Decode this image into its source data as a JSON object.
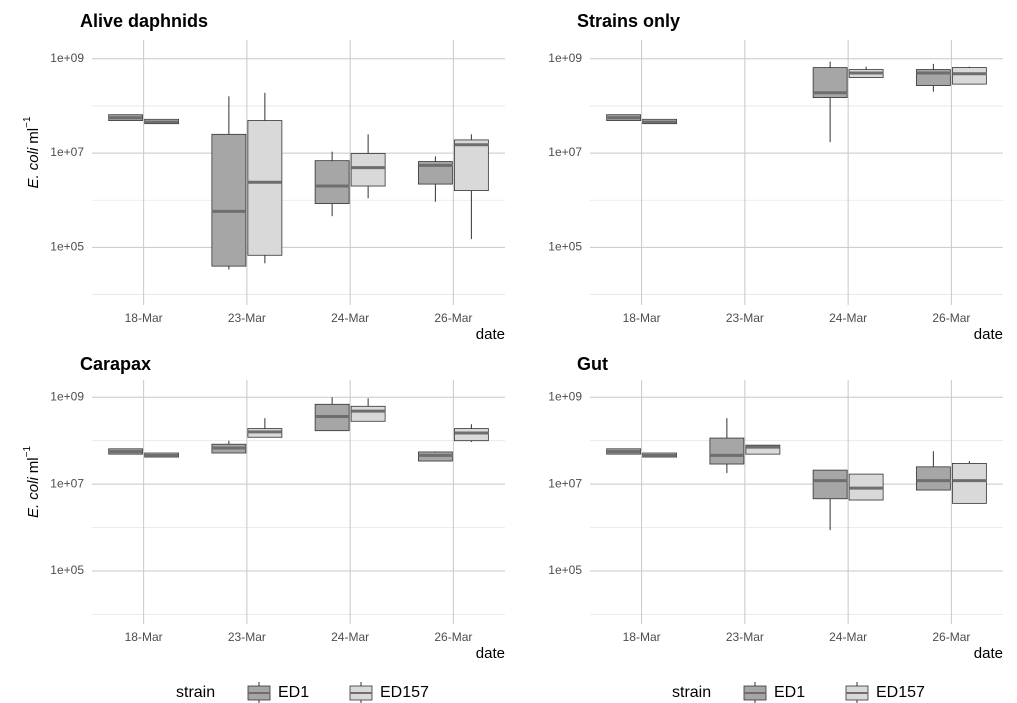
{
  "chart_data": [
    {
      "type": "box",
      "title": "Alive daphnids",
      "ylabel": "E. coli",
      "ylabel_unit": "ml",
      "ylabel_exp": "−1",
      "xlabel": "date",
      "categories": [
        "18-Mar",
        "23-Mar",
        "24-Mar",
        "26-Mar"
      ],
      "log_y": true,
      "grid": true,
      "ylim": [
        6000,
        2500000000
      ],
      "yticks": [
        {
          "value": 100000,
          "label": "1e+05"
        },
        {
          "value": 10000000,
          "label": "1e+07"
        },
        {
          "value": 1000000000,
          "label": "1e+09"
        }
      ],
      "yminor": [
        10000,
        1000000,
        100000000
      ],
      "series": [
        {
          "name": "ED1",
          "color": "#a6a6a6",
          "values": [
            {
              "min": 49000000,
              "q1": 49000000,
              "median": 56000000,
              "q3": 65000000,
              "max": 65000000
            },
            {
              "min": 34000,
              "q1": 40000,
              "median": 580000,
              "q3": 25000000,
              "max": 160000000
            },
            {
              "min": 460000,
              "q1": 850000,
              "median": 2000000,
              "q3": 6900000,
              "max": 10700000
            },
            {
              "min": 930000,
              "q1": 2200000,
              "median": 5500000,
              "q3": 6600000,
              "max": 8500000
            }
          ]
        },
        {
          "name": "ED157",
          "color": "#d9d9d9",
          "values": [
            {
              "min": 42000000,
              "q1": 42000000,
              "median": 46000000,
              "q3": 52000000,
              "max": 52000000
            },
            {
              "min": 46000,
              "q1": 68000,
              "median": 2400000,
              "q3": 49000000,
              "max": 190000000
            },
            {
              "min": 1100000,
              "q1": 2000000,
              "median": 4900000,
              "q3": 9800000,
              "max": 25000000
            },
            {
              "min": 150000,
              "q1": 1600000,
              "median": 15000000,
              "q3": 19000000,
              "max": 25000000
            }
          ]
        }
      ]
    },
    {
      "type": "box",
      "title": "Strains only",
      "xlabel": "date",
      "categories": [
        "18-Mar",
        "23-Mar",
        "24-Mar",
        "26-Mar"
      ],
      "log_y": true,
      "grid": true,
      "ylim": [
        6000,
        2500000000
      ],
      "yticks": [
        {
          "value": 100000,
          "label": "1e+05"
        },
        {
          "value": 10000000,
          "label": "1e+07"
        },
        {
          "value": 1000000000,
          "label": "1e+09"
        }
      ],
      "yminor": [
        10000,
        1000000,
        100000000
      ],
      "series": [
        {
          "name": "ED1",
          "color": "#a6a6a6",
          "values": [
            {
              "min": 49000000,
              "q1": 49000000,
              "median": 56000000,
              "q3": 65000000,
              "max": 65000000
            },
            null,
            {
              "min": 17000000,
              "q1": 150000000,
              "median": 190000000,
              "q3": 650000000,
              "max": 870000000
            },
            {
              "min": 200000000,
              "q1": 270000000,
              "median": 500000000,
              "q3": 590000000,
              "max": 780000000
            }
          ]
        },
        {
          "name": "ED157",
          "color": "#d9d9d9",
          "values": [
            {
              "min": 42000000,
              "q1": 42000000,
              "median": 46000000,
              "q3": 52000000,
              "max": 52000000
            },
            null,
            {
              "min": 400000000,
              "q1": 400000000,
              "median": 500000000,
              "q3": 590000000,
              "max": 680000000
            },
            {
              "min": 290000000,
              "q1": 290000000,
              "median": 480000000,
              "q3": 650000000,
              "max": 680000000
            }
          ]
        }
      ]
    },
    {
      "type": "box",
      "title": "Carapax",
      "ylabel": "E. coli",
      "ylabel_unit": "ml",
      "ylabel_exp": "−1",
      "xlabel": "date",
      "legend_title": "strain",
      "categories": [
        "18-Mar",
        "23-Mar",
        "24-Mar",
        "26-Mar"
      ],
      "log_y": true,
      "grid": true,
      "ylim": [
        6000,
        2500000000
      ],
      "yticks": [
        {
          "value": 100000,
          "label": "1e+05"
        },
        {
          "value": 10000000,
          "label": "1e+07"
        },
        {
          "value": 1000000000,
          "label": "1e+09"
        }
      ],
      "yminor": [
        10000,
        1000000,
        100000000
      ],
      "series": [
        {
          "name": "ED1",
          "color": "#a6a6a6",
          "values": [
            {
              "min": 49000000,
              "q1": 49000000,
              "median": 56000000,
              "q3": 65000000,
              "max": 65000000
            },
            {
              "min": 52000000,
              "q1": 52000000,
              "median": 68000000,
              "q3": 83000000,
              "max": 100000000
            },
            {
              "min": 170000000,
              "q1": 170000000,
              "median": 360000000,
              "q3": 690000000,
              "max": 1000000000
            },
            {
              "min": 34000000,
              "q1": 34000000,
              "median": 46000000,
              "q3": 55000000,
              "max": 57000000
            }
          ]
        },
        {
          "name": "ED157",
          "color": "#d9d9d9",
          "values": [
            {
              "min": 42000000,
              "q1": 42000000,
              "median": 46000000,
              "q3": 52000000,
              "max": 52000000
            },
            {
              "min": 120000000,
              "q1": 120000000,
              "median": 160000000,
              "q3": 190000000,
              "max": 330000000
            },
            {
              "min": 280000000,
              "q1": 280000000,
              "median": 480000000,
              "q3": 620000000,
              "max": 950000000
            },
            {
              "min": 93000000,
              "q1": 100000000,
              "median": 150000000,
              "q3": 190000000,
              "max": 240000000
            }
          ]
        }
      ]
    },
    {
      "type": "box",
      "title": "Gut",
      "xlabel": "date",
      "legend_title": "strain",
      "categories": [
        "18-Mar",
        "23-Mar",
        "24-Mar",
        "26-Mar"
      ],
      "log_y": true,
      "grid": true,
      "ylim": [
        6000,
        2500000000
      ],
      "yticks": [
        {
          "value": 100000,
          "label": "1e+05"
        },
        {
          "value": 10000000,
          "label": "1e+07"
        },
        {
          "value": 1000000000,
          "label": "1e+09"
        }
      ],
      "yminor": [
        10000,
        1000000,
        100000000
      ],
      "series": [
        {
          "name": "ED1",
          "color": "#a6a6a6",
          "values": [
            {
              "min": 49000000,
              "q1": 49000000,
              "median": 56000000,
              "q3": 65000000,
              "max": 65000000
            },
            {
              "min": 18000000,
              "q1": 29000000,
              "median": 46000000,
              "q3": 115000000,
              "max": 330000000
            },
            {
              "min": 870000,
              "q1": 4600000,
              "median": 12000000,
              "q3": 21000000,
              "max": 21000000
            },
            {
              "min": 7300000,
              "q1": 7300000,
              "median": 12000000,
              "q3": 25000000,
              "max": 57000000
            }
          ]
        },
        {
          "name": "ED157",
          "color": "#d9d9d9",
          "values": [
            {
              "min": 42000000,
              "q1": 42000000,
              "median": 46000000,
              "q3": 52000000,
              "max": 52000000
            },
            {
              "min": 49000000,
              "q1": 49000000,
              "median": 71000000,
              "q3": 79000000,
              "max": 79000000
            },
            {
              "min": 4300000,
              "q1": 4300000,
              "median": 8100000,
              "q3": 17000000,
              "max": 17000000
            },
            {
              "min": 3600000,
              "q1": 3600000,
              "median": 12000000,
              "q3": 30000000,
              "max": 34000000
            }
          ]
        }
      ]
    }
  ]
}
